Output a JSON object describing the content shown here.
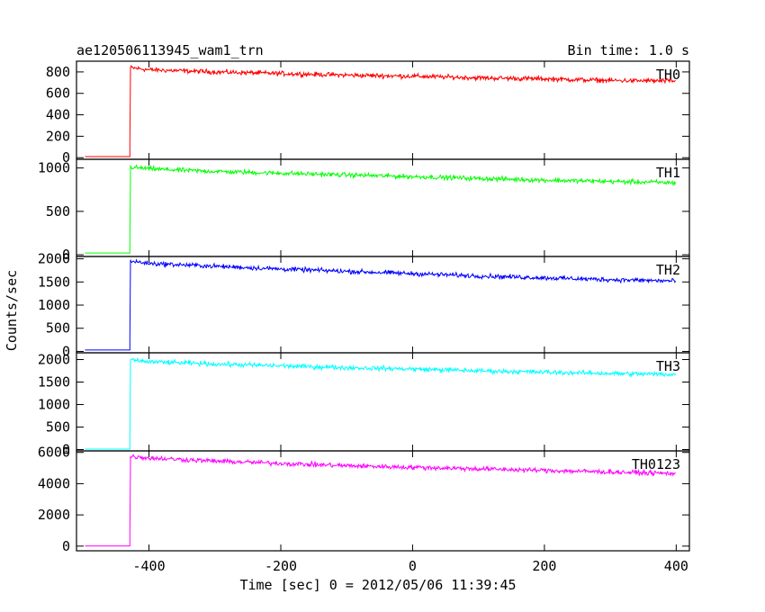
{
  "title": "ae120506113945_wam1_trn",
  "bin_time": "Bin time: 1.0 s",
  "ylabel": "Counts/sec",
  "xlabel": "Time [sec] 0 = 2012/05/06 11:39:45",
  "chart_data": {
    "type": "line",
    "title": "ae120506113945_wam1_trn",
    "xlabel": "Time [sec] 0 = 2012/05/06 11:39:45",
    "ylabel": "Counts/sec",
    "xlim": [
      -510,
      420
    ],
    "x_ticks": [
      -400,
      -200,
      0,
      200,
      400
    ],
    "trigger_time": -428,
    "panels": [
      {
        "name": "TH0",
        "color": "#ff0000",
        "ylim": [
          -15,
          900
        ],
        "y_ticks": [
          0,
          200,
          400,
          600,
          800
        ],
        "baseline": 10,
        "x": [
          -428,
          -400,
          -300,
          -200,
          -100,
          0,
          100,
          200,
          300,
          400
        ],
        "y": [
          840,
          820,
          800,
          785,
          770,
          760,
          745,
          735,
          720,
          715
        ]
      },
      {
        "name": "TH1",
        "color": "#00ff00",
        "ylim": [
          -20,
          1100
        ],
        "y_ticks": [
          0,
          500,
          1000
        ],
        "baseline": 20,
        "x": [
          -428,
          -400,
          -300,
          -200,
          -100,
          0,
          100,
          200,
          300,
          400
        ],
        "y": [
          1010,
          990,
          960,
          940,
          920,
          900,
          880,
          860,
          845,
          830
        ]
      },
      {
        "name": "TH2",
        "color": "#0000ff",
        "ylim": [
          -30,
          2050
        ],
        "y_ticks": [
          0,
          500,
          1000,
          1500,
          2000
        ],
        "baseline": 30,
        "x": [
          -428,
          -400,
          -300,
          -200,
          -100,
          0,
          100,
          200,
          300,
          400
        ],
        "y": [
          1950,
          1900,
          1840,
          1780,
          1730,
          1680,
          1630,
          1590,
          1550,
          1520
        ]
      },
      {
        "name": "TH3",
        "color": "#00ffff",
        "ylim": [
          -30,
          2150
        ],
        "y_ticks": [
          0,
          500,
          1000,
          1500,
          2000
        ],
        "baseline": 10,
        "x": [
          -428,
          -400,
          -300,
          -200,
          -100,
          0,
          100,
          200,
          300,
          400
        ],
        "y": [
          1990,
          1950,
          1900,
          1860,
          1820,
          1790,
          1750,
          1720,
          1690,
          1670
        ]
      },
      {
        "name": "TH0123",
        "color": "#ff00ff",
        "ylim": [
          -300,
          6100
        ],
        "y_ticks": [
          0,
          2000,
          4000,
          6000
        ],
        "baseline": 10,
        "x": [
          -428,
          -400,
          -300,
          -200,
          -100,
          0,
          100,
          200,
          300,
          400
        ],
        "y": [
          5750,
          5650,
          5450,
          5300,
          5150,
          5050,
          4950,
          4850,
          4750,
          4650
        ]
      }
    ]
  }
}
